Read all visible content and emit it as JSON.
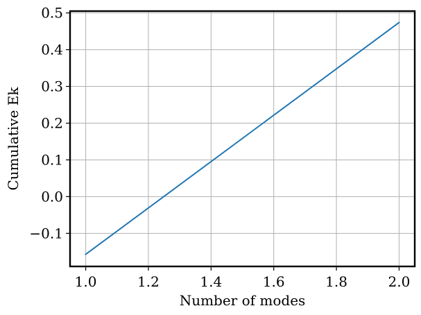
{
  "chart_data": {
    "type": "line",
    "xlabel": "Number of modes",
    "ylabel": "Cumulative Ek",
    "xlim": [
      0.95,
      2.05
    ],
    "ylim": [
      -0.19,
      0.505
    ],
    "xticks": [
      1.0,
      1.2,
      1.4,
      1.6,
      1.8,
      2.0
    ],
    "xtick_labels": [
      "1.0",
      "1.2",
      "1.4",
      "1.6",
      "1.8",
      "2.0"
    ],
    "yticks": [
      -0.1,
      0.0,
      0.1,
      0.2,
      0.3,
      0.4,
      0.5
    ],
    "ytick_labels": [
      "−0.1",
      "0.0",
      "0.1",
      "0.2",
      "0.3",
      "0.4",
      "0.5"
    ],
    "grid": true,
    "series": [
      {
        "x": [
          1.0,
          2.0
        ],
        "y": [
          -0.157,
          0.474
        ],
        "color": "#1f77b4"
      }
    ]
  }
}
